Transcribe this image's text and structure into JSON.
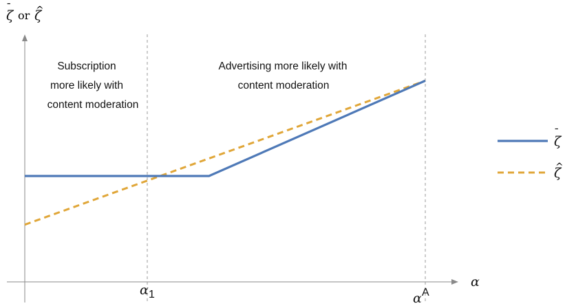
{
  "chart_data": {
    "type": "line",
    "title": "",
    "ylabel": {
      "sym1": "ζ",
      "bar": "¯",
      "or": "or",
      "sym2": "ζ",
      "hat": "^"
    },
    "xlabel": "α",
    "xlim": [
      0,
      1.08
    ],
    "ylim": [
      0,
      1.0
    ],
    "grid": false,
    "legend_position": "right",
    "x_ticks": [
      {
        "x": 0.3,
        "label": "α",
        "sub": "1",
        "sup": ""
      },
      {
        "x": 1.0,
        "label": "α",
        "sub": "",
        "sup": "A"
      }
    ],
    "series": [
      {
        "name": "ζ̄",
        "legend_symbol": "ζ",
        "legend_accent": "¯",
        "color": "#4e79b7",
        "style": "solid",
        "x": [
          0,
          0.46,
          1.0
        ],
        "y": [
          0.5,
          0.5,
          0.95
        ]
      },
      {
        "name": "ζ̂",
        "legend_symbol": "ζ",
        "legend_accent": "^",
        "color": "#e0a638",
        "style": "dashed",
        "x": [
          0,
          1.0
        ],
        "y": [
          0.27,
          0.95
        ]
      }
    ],
    "annotations": [
      {
        "id": "left",
        "lines": [
          "Subscription",
          "more likely with",
          "content moderation"
        ]
      },
      {
        "id": "right",
        "lines": [
          "Advertising more likely with",
          "content moderation"
        ]
      }
    ]
  }
}
